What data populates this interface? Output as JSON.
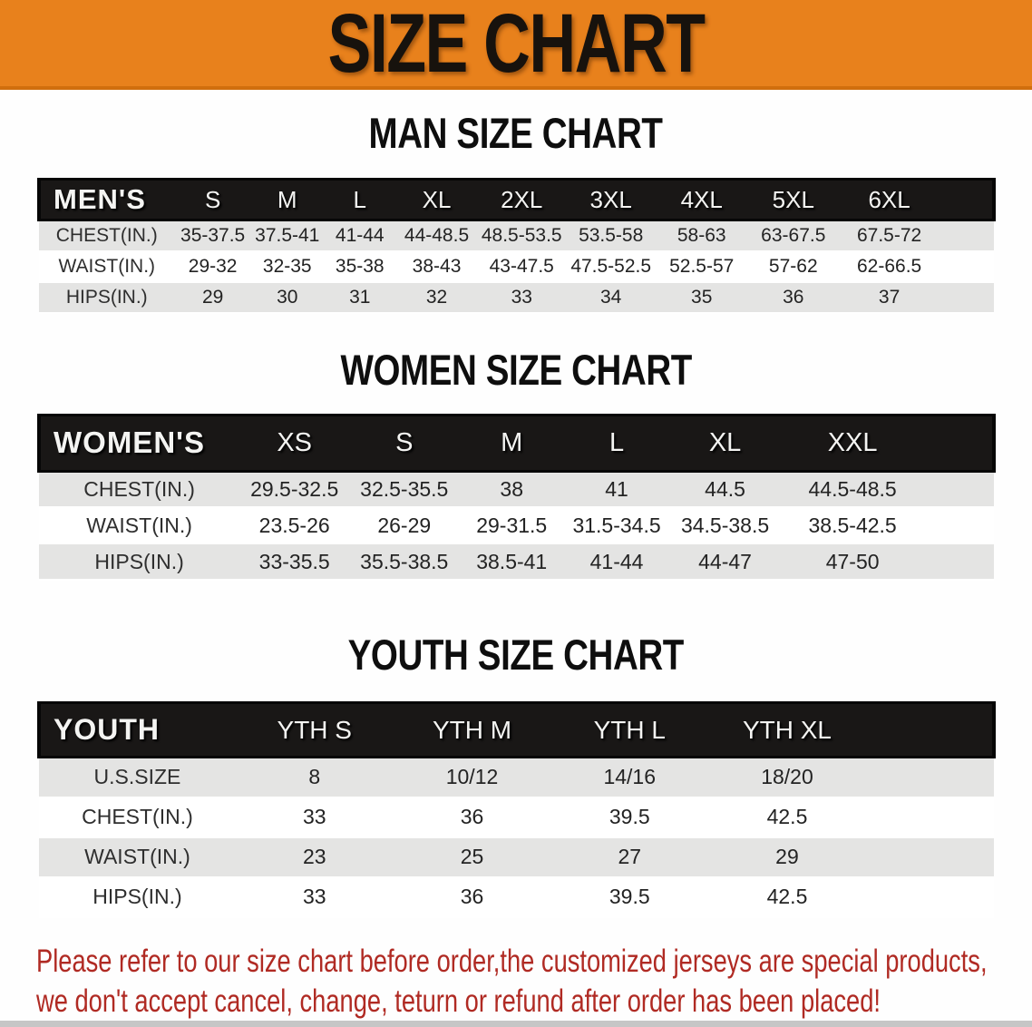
{
  "banner": {
    "title": "SIZE CHART"
  },
  "colors": {
    "banner_orange": "#e8811c",
    "banner_edge": "#d06e0d",
    "header_black": "#191716",
    "row_gray": "#e4e4e3",
    "disclaimer_red": "#b02a23"
  },
  "sections": {
    "men": {
      "title": "MAN SIZE CHART"
    },
    "women": {
      "title": "WOMEN SIZE CHART"
    },
    "youth": {
      "title": "YOUTH SIZE CHART"
    }
  },
  "tables": {
    "men": {
      "label": "MEN'S",
      "columns": [
        "S",
        "M",
        "L",
        "XL",
        "2XL",
        "3XL",
        "4XL",
        "5XL",
        "6XL"
      ],
      "rows": [
        {
          "label": "CHEST(IN.)",
          "values": [
            "35-37.5",
            "37.5-41",
            "41-44",
            "44-48.5",
            "48.5-53.5",
            "53.5-58",
            "58-63",
            "63-67.5",
            "67.5-72"
          ]
        },
        {
          "label": "WAIST(IN.)",
          "values": [
            "29-32",
            "32-35",
            "35-38",
            "38-43",
            "43-47.5",
            "47.5-52.5",
            "52.5-57",
            "57-62",
            "62-66.5"
          ]
        },
        {
          "label": "HIPS(IN.)",
          "values": [
            "29",
            "30",
            "31",
            "32",
            "33",
            "34",
            "35",
            "36",
            "37"
          ]
        }
      ]
    },
    "women": {
      "label": "WOMEN'S",
      "columns": [
        "XS",
        "S",
        "M",
        "L",
        "XL",
        "XXL"
      ],
      "rows": [
        {
          "label": "CHEST(IN.)",
          "values": [
            "29.5-32.5",
            "32.5-35.5",
            "38",
            "41",
            "44.5",
            "44.5-48.5"
          ]
        },
        {
          "label": "WAIST(IN.)",
          "values": [
            "23.5-26",
            "26-29",
            "29-31.5",
            "31.5-34.5",
            "34.5-38.5",
            "38.5-42.5"
          ]
        },
        {
          "label": "HIPS(IN.)",
          "values": [
            "33-35.5",
            "35.5-38.5",
            "38.5-41",
            "41-44",
            "44-47",
            "47-50"
          ]
        }
      ]
    },
    "youth": {
      "label": "YOUTH",
      "columns": [
        "YTH S",
        "YTH M",
        "YTH L",
        "YTH XL"
      ],
      "rows": [
        {
          "label": "U.S.SIZE",
          "values": [
            "8",
            "10/12",
            "14/16",
            "18/20"
          ]
        },
        {
          "label": "CHEST(IN.)",
          "values": [
            "33",
            "36",
            "39.5",
            "42.5"
          ]
        },
        {
          "label": "WAIST(IN.)",
          "values": [
            "23",
            "25",
            "27",
            "29"
          ]
        },
        {
          "label": "HIPS(IN.)",
          "values": [
            "33",
            "36",
            "39.5",
            "42.5"
          ]
        }
      ]
    }
  },
  "disclaimer": {
    "line1": "Please refer to our size chart before order,the customized jerseys are special products,",
    "line2": "we don't accept cancel, change, teturn or refund after order has been placed!"
  }
}
